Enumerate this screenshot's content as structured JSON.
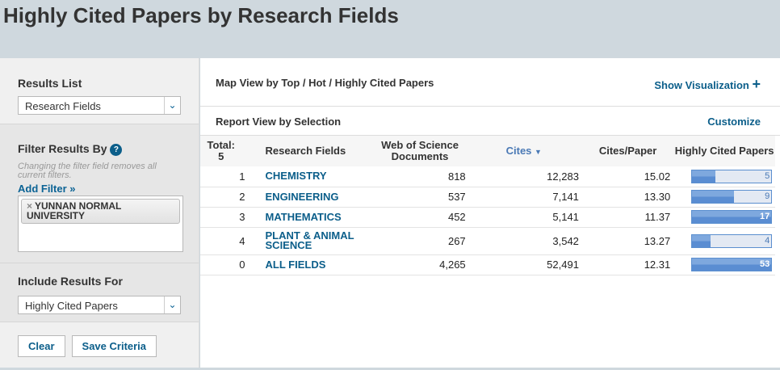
{
  "title": "Highly Cited Papers by Research Fields",
  "sidebar": {
    "results_list_label": "Results List",
    "results_list_value": "Research Fields",
    "filter_label": "Filter Results By",
    "filter_help": "?",
    "filter_note": "Changing the filter field removes all current filters.",
    "add_filter": "Add Filter »",
    "filter_chip": "YUNNAN NORMAL UNIVERSITY",
    "chip_remove": "×",
    "include_label": "Include Results For",
    "include_value": "Highly Cited Papers",
    "clear": "Clear",
    "save": "Save Criteria"
  },
  "main": {
    "map_view": "Map View by Top / Hot / Highly Cited Papers",
    "show_vis": "Show Visualization",
    "report_view": "Report View by Selection",
    "customize": "Customize",
    "headers": {
      "total": "Total:",
      "total_count": "5",
      "field": "Research Fields",
      "docs": "Web of Science Documents",
      "cites": "Cites",
      "cpp": "Cites/Paper",
      "hcp": "Highly Cited Papers"
    },
    "rows": [
      {
        "rank": "1",
        "field": "CHEMISTRY",
        "docs": "818",
        "cites": "12,283",
        "cpp": "15.02",
        "hcp": "5",
        "hcp_value": 5
      },
      {
        "rank": "2",
        "field": "ENGINEERING",
        "docs": "537",
        "cites": "7,141",
        "cpp": "13.30",
        "hcp": "9",
        "hcp_value": 9
      },
      {
        "rank": "3",
        "field": "MATHEMATICS",
        "docs": "452",
        "cites": "5,141",
        "cpp": "11.37",
        "hcp": "17",
        "hcp_value": 17
      },
      {
        "rank": "4",
        "field": "PLANT & ANIMAL SCIENCE",
        "docs": "267",
        "cites": "3,542",
        "cpp": "13.27",
        "hcp": "4",
        "hcp_value": 4
      },
      {
        "rank": "0",
        "field": "ALL FIELDS",
        "docs": "4,265",
        "cites": "52,491",
        "cpp": "12.31",
        "hcp": "53",
        "hcp_value": 53
      }
    ]
  },
  "colors": {
    "link": "#0b5e8a",
    "bar": "#5a8dd2"
  }
}
